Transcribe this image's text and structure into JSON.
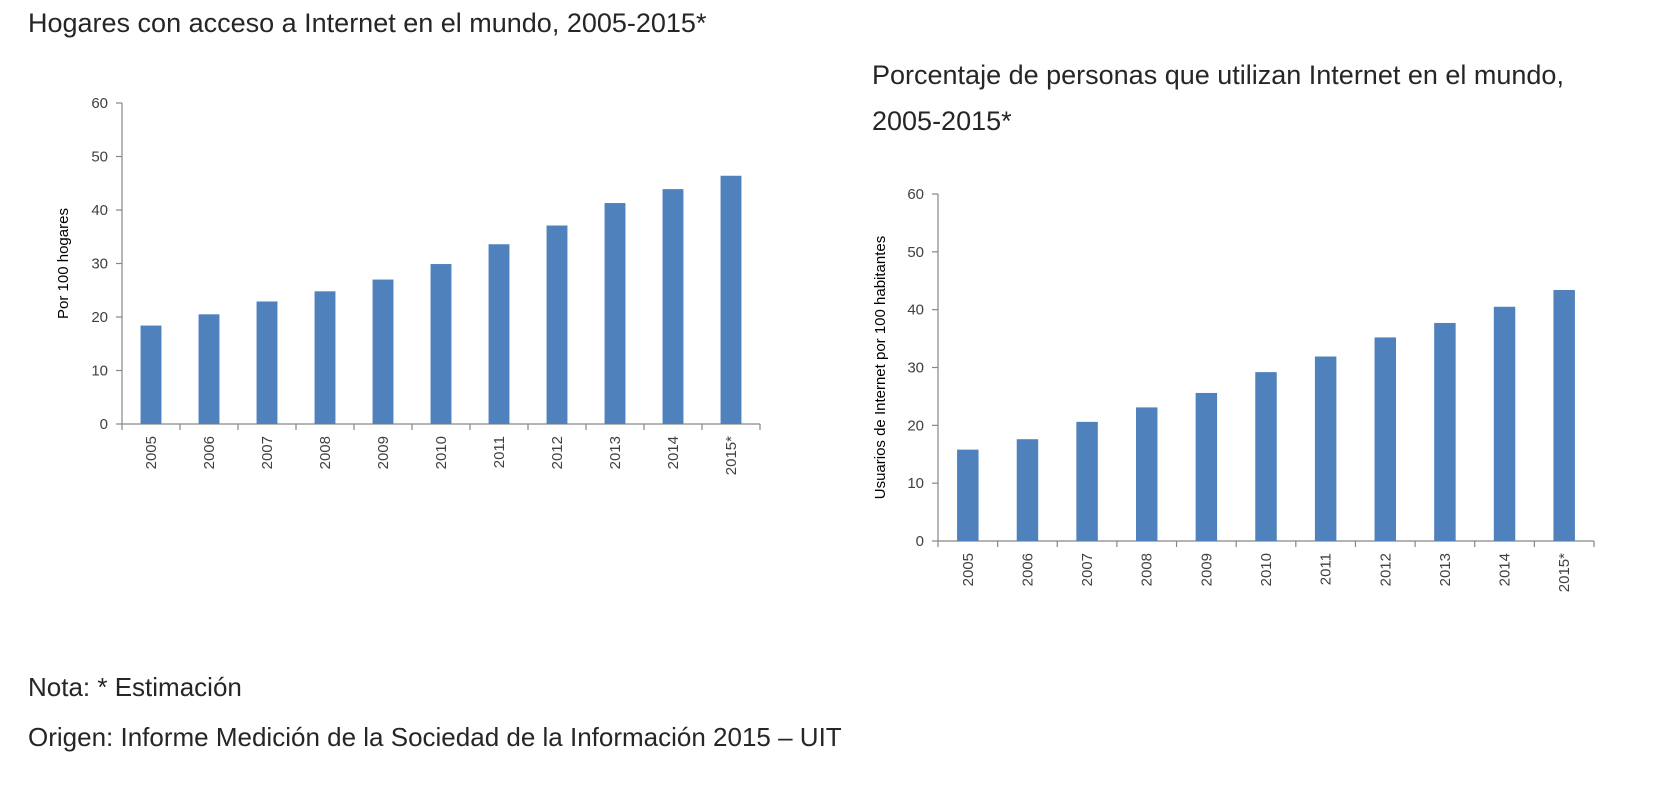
{
  "chart_data": [
    {
      "type": "bar",
      "title": "Hogares con acceso a Internet en el mundo, 2005-2015*",
      "xlabel": "",
      "ylabel": "Por 100 hogares",
      "categories": [
        "2005",
        "2006",
        "2007",
        "2008",
        "2009",
        "2010",
        "2011",
        "2012",
        "2013",
        "2014",
        "2015*"
      ],
      "values": [
        18.4,
        20.5,
        22.9,
        24.8,
        27.0,
        29.9,
        33.6,
        37.1,
        41.3,
        43.9,
        46.4
      ],
      "ylim": [
        0,
        60
      ],
      "yticks": [
        0,
        10,
        20,
        30,
        40,
        50,
        60
      ],
      "grid": false,
      "color": "#4f81bd"
    },
    {
      "type": "bar",
      "title": "Porcentaje de personas que utilizan Internet en el mundo, 2005-2015*",
      "xlabel": "",
      "ylabel": "Usuarios de Internet por 100 habitantes",
      "categories": [
        "2005",
        "2006",
        "2007",
        "2008",
        "2009",
        "2010",
        "2011",
        "2012",
        "2013",
        "2014",
        "2015*"
      ],
      "values": [
        15.8,
        17.6,
        20.6,
        23.1,
        25.6,
        29.2,
        31.9,
        35.2,
        37.7,
        40.5,
        43.4
      ],
      "ylim": [
        0,
        60
      ],
      "yticks": [
        0,
        10,
        20,
        30,
        40,
        50,
        60
      ],
      "grid": false,
      "color": "#4f81bd"
    }
  ],
  "notes": {
    "note": "Nota: * Estimación",
    "source": "Origen: Informe Medición de la Sociedad de la Información 2015 – UIT"
  }
}
